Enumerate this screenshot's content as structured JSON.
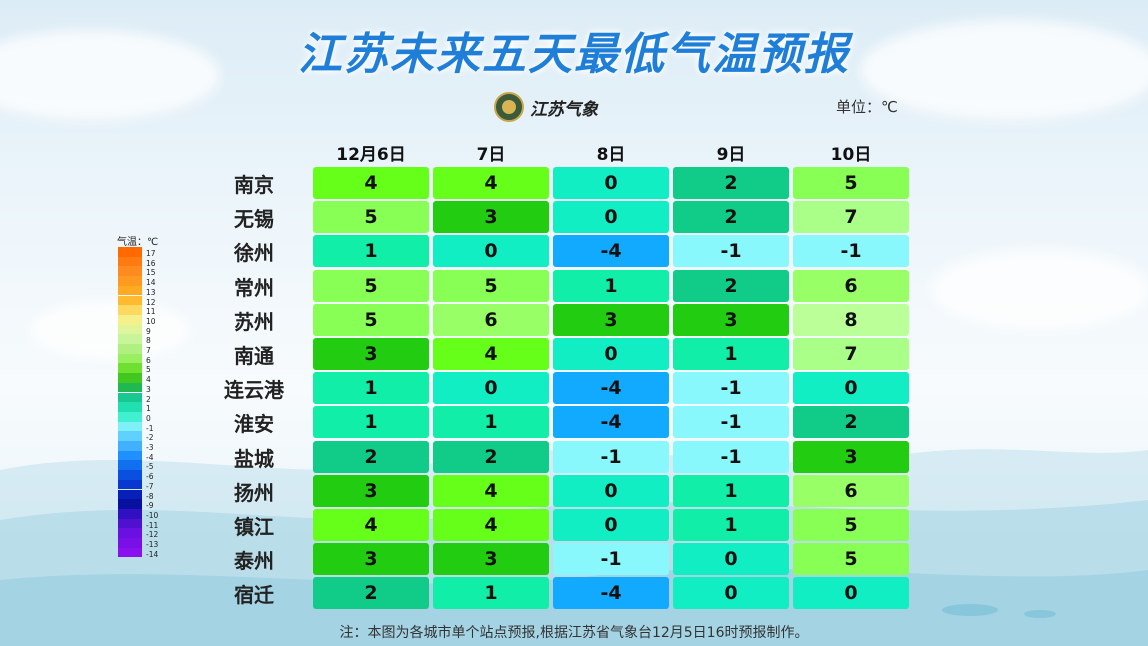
{
  "title": "江苏未来五天最低气温预报",
  "logo_text": "江苏气象",
  "unit_label": "单位：℃",
  "columns": [
    "12月6日",
    "7日",
    "8日",
    "9日",
    "10日"
  ],
  "rows": [
    {
      "city": "南京",
      "values": [
        "4",
        "4",
        "0",
        "2",
        "5"
      ]
    },
    {
      "city": "无锡",
      "values": [
        "5",
        "3",
        "0",
        "2",
        "7"
      ]
    },
    {
      "city": "徐州",
      "values": [
        "1",
        "0",
        "-4",
        "-1",
        "-1"
      ]
    },
    {
      "city": "常州",
      "values": [
        "5",
        "5",
        "1",
        "2",
        "6"
      ]
    },
    {
      "city": "苏州",
      "values": [
        "5",
        "6",
        "3",
        "3",
        "8"
      ]
    },
    {
      "city": "南通",
      "values": [
        "3",
        "4",
        "0",
        "1",
        "7"
      ]
    },
    {
      "city": "连云港",
      "values": [
        "1",
        "0",
        "-4",
        "-1",
        "0"
      ]
    },
    {
      "city": "淮安",
      "values": [
        "1",
        "1",
        "-4",
        "-1",
        "2"
      ]
    },
    {
      "city": "盐城",
      "values": [
        "2",
        "2",
        "-1",
        "-1",
        "3"
      ]
    },
    {
      "city": "扬州",
      "values": [
        "3",
        "4",
        "0",
        "1",
        "6"
      ]
    },
    {
      "city": "镇江",
      "values": [
        "4",
        "4",
        "0",
        "1",
        "5"
      ]
    },
    {
      "city": "泰州",
      "values": [
        "3",
        "3",
        "-1",
        "0",
        "5"
      ]
    },
    {
      "city": "宿迁",
      "values": [
        "2",
        "1",
        "-4",
        "0",
        "0"
      ]
    }
  ],
  "legend": {
    "title": "气温：℃",
    "labels": [
      "17",
      "16",
      "15",
      "14",
      "13",
      "12",
      "11",
      "10",
      "9",
      "8",
      "7",
      "6",
      "5",
      "4",
      "3",
      "2",
      "1",
      "0",
      "-1",
      "-2",
      "-3",
      "-4",
      "-5",
      "-6",
      "-7",
      "-8",
      "-9",
      "-10",
      "-11",
      "-12",
      "-13",
      "-14"
    ],
    "colors": [
      "#ff6a00",
      "#ff7a10",
      "#ff8a20",
      "#ff9a20",
      "#ffaa20",
      "#ffbb30",
      "#ffd860",
      "#f4f08a",
      "#e0f59a",
      "#c8f59a",
      "#b0f080",
      "#98f060",
      "#70e030",
      "#40c820",
      "#20b850",
      "#18c890",
      "#20e0b0",
      "#40f0d0",
      "#80f0f8",
      "#60d0ff",
      "#40b0ff",
      "#2090ff",
      "#1070f0",
      "#0a50e0",
      "#0838d0",
      "#0620b8",
      "#0810a0",
      "#3010c0",
      "#5010d0",
      "#6a10e0",
      "#7a10e8",
      "#8a10f0"
    ]
  },
  "palette": {
    "4": "#66ff1a",
    "5": "#88ff55",
    "3": "#22cc11",
    "0": "#11eec4",
    "1": "#11eea8",
    "2": "#11cc88",
    "6": "#99ff66",
    "7": "#aaff88",
    "8": "#bbff99",
    "-1": "#88f8fc",
    "-4": "#11aaff"
  },
  "note": "注：本图为各城市单个站点预报,根据江苏省气象台12月5日16时预报制作。"
}
